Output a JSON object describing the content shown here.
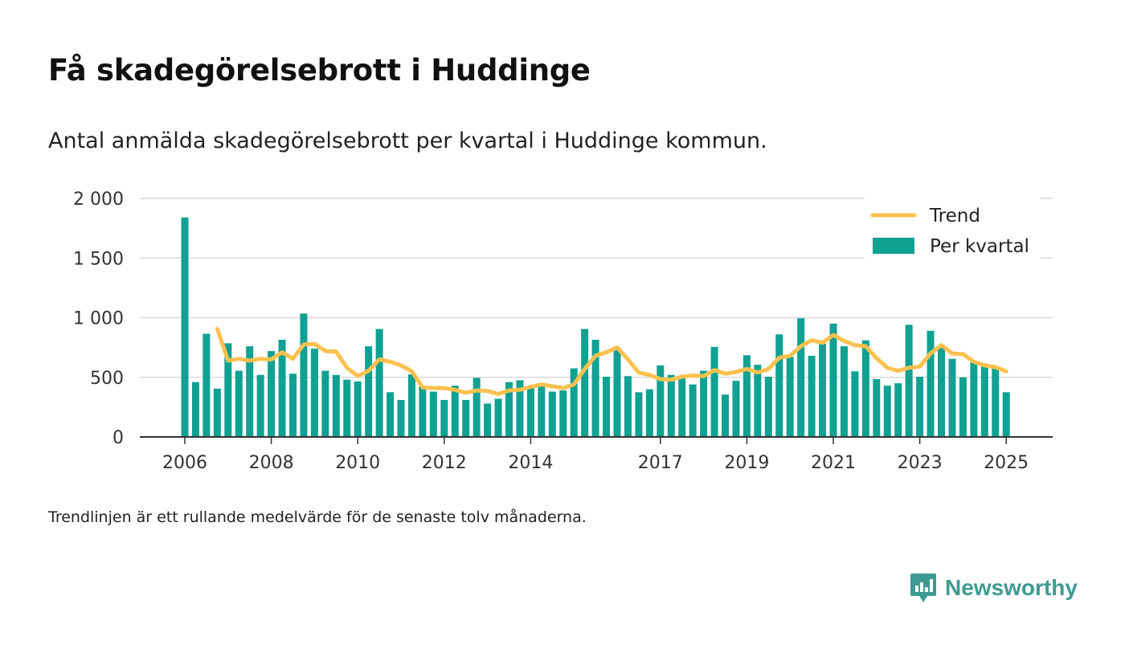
{
  "title": "Få skadegörelsebrott i Huddinge",
  "subtitle": "Antal anmälda skadegörelsebrott per kvartal i Huddinge kommun.",
  "footnote": "Trendlinjen är ett rullande medelvärde för de senaste tolv månaderna.",
  "brand": {
    "name": "Newsworthy",
    "icon": "newsworthy-logo-icon",
    "color": "#3e9a92"
  },
  "chart_data": {
    "type": "bar",
    "ylim": [
      0,
      2000
    ],
    "yticks": [
      {
        "value": 0,
        "label": "0"
      },
      {
        "value": 500,
        "label": "500"
      },
      {
        "value": 1000,
        "label": "1 000"
      },
      {
        "value": 1500,
        "label": "1 500"
      },
      {
        "value": 2000,
        "label": "2 000"
      }
    ],
    "xticks": [
      {
        "year": 2006,
        "label": "2006"
      },
      {
        "year": 2008,
        "label": "2008"
      },
      {
        "year": 2010,
        "label": "2010"
      },
      {
        "year": 2012,
        "label": "2012"
      },
      {
        "year": 2014,
        "label": "2014"
      },
      {
        "year": 2017,
        "label": "2017"
      },
      {
        "year": 2019,
        "label": "2019"
      },
      {
        "year": 2021,
        "label": "2021"
      },
      {
        "year": 2023,
        "label": "2023"
      },
      {
        "year": 2025,
        "label": "2025"
      }
    ],
    "grid": true,
    "legend_position": "top-right",
    "colors": {
      "bar": "#0fa192",
      "trend": "#fdc14f",
      "axis": "#333333",
      "grid": "#d9d9d9"
    },
    "series": [
      {
        "name": "Per kvartal",
        "type": "bar",
        "start": "2006 Q1",
        "values": [
          1840,
          460,
          865,
          405,
          785,
          555,
          760,
          520,
          720,
          815,
          530,
          1035,
          740,
          555,
          520,
          480,
          465,
          760,
          905,
          375,
          310,
          525,
          425,
          380,
          310,
          430,
          310,
          495,
          280,
          320,
          460,
          475,
          420,
          425,
          380,
          390,
          575,
          905,
          815,
          505,
          750,
          510,
          375,
          400,
          600,
          520,
          500,
          440,
          555,
          755,
          355,
          470,
          685,
          605,
          505,
          860,
          670,
          995,
          680,
          780,
          950,
          760,
          550,
          810,
          485,
          430,
          450,
          940,
          505,
          890,
          765,
          655,
          500,
          625,
          590,
          575,
          375
        ]
      },
      {
        "name": "Trend",
        "type": "line",
        "start": "2006 Q4",
        "values": [
          905,
          640,
          655,
          640,
          655,
          650,
          710,
          655,
          775,
          780,
          720,
          715,
          580,
          510,
          555,
          650,
          630,
          600,
          550,
          415,
          410,
          410,
          395,
          370,
          390,
          385,
          360,
          390,
          395,
          420,
          440,
          425,
          410,
          440,
          570,
          680,
          710,
          750,
          650,
          540,
          520,
          485,
          480,
          505,
          515,
          510,
          560,
          530,
          545,
          570,
          540,
          570,
          665,
          680,
          760,
          810,
          790,
          855,
          805,
          770,
          760,
          660,
          580,
          555,
          580,
          590,
          700,
          770,
          700,
          695,
          630,
          600,
          585,
          550
        ]
      }
    ]
  }
}
